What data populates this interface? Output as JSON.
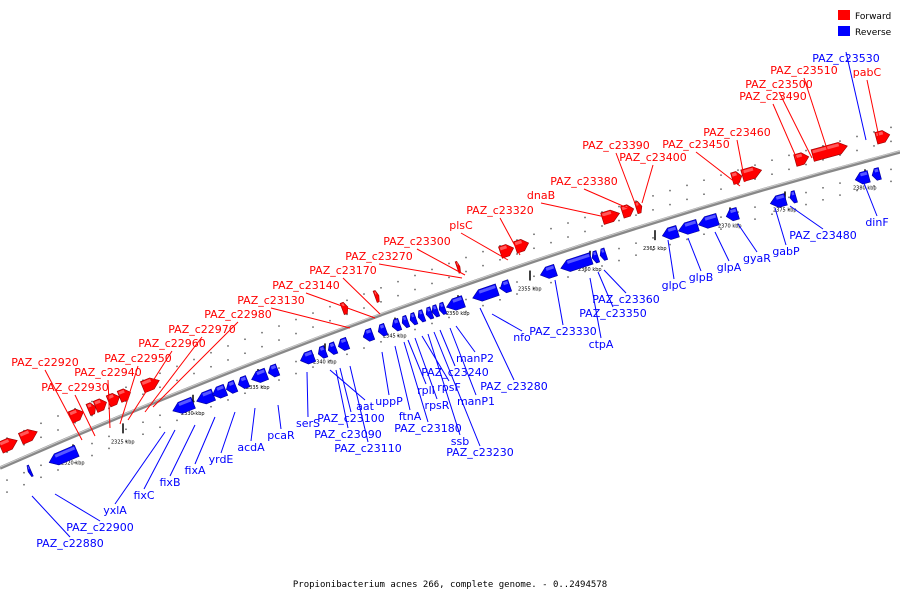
{
  "caption": "Propionibacterium acnes 266, complete genome. - 0..2494578",
  "legend": [
    {
      "label": "Forward",
      "color": "#ff0000"
    },
    {
      "label": "Reverse",
      "color": "#0000ff"
    }
  ],
  "colors": {
    "forward": "#ff0000",
    "reverse": "#0000ff",
    "backbone": "#888888"
  },
  "scale": {
    "unit": "kbp",
    "ticks_kbp": [
      2320,
      2325,
      2330,
      2335,
      2340,
      2345,
      2350,
      2355,
      2360,
      2365,
      2370,
      2375,
      2380
    ]
  },
  "forward_labels": [
    "PAZ_c22920",
    "PAZ_c22930",
    "PAZ_c22940",
    "PAZ_c22950",
    "PAZ_c22960",
    "PAZ_c22970",
    "PAZ_c22980",
    "PAZ_c23130",
    "PAZ_c23140",
    "PAZ_c23170",
    "PAZ_c23270",
    "PAZ_c23300",
    "plsC",
    "PAZ_c23320",
    "dnaB",
    "PAZ_c23380",
    "PAZ_c23390",
    "PAZ_c23400",
    "PAZ_c23450",
    "PAZ_c23460",
    "PAZ_c23490",
    "PAZ_c23500",
    "PAZ_c23510",
    "pabC"
  ],
  "reverse_labels": [
    "PAZ_c22880",
    "PAZ_c22900",
    "yxlA",
    "fixC",
    "fixB",
    "fixA",
    "yrdE",
    "acdA",
    "pcaR",
    "serS",
    "aat",
    "PAZ_c23100",
    "PAZ_c23090",
    "PAZ_c23110",
    "uppP",
    "ftnA",
    "PAZ_c23180",
    "rplI",
    "rpsR",
    "rpsF",
    "ssb",
    "PAZ_c23230",
    "PAZ_c23240",
    "manP1",
    "manP2",
    "PAZ_c23280",
    "nfo",
    "PAZ_c23330",
    "ctpA",
    "PAZ_c23350",
    "PAZ_c23360",
    "glpC",
    "glpB",
    "glpA",
    "gyaR",
    "gabP",
    "PAZ_c23480",
    "dinF",
    "PAZ_c23530"
  ]
}
